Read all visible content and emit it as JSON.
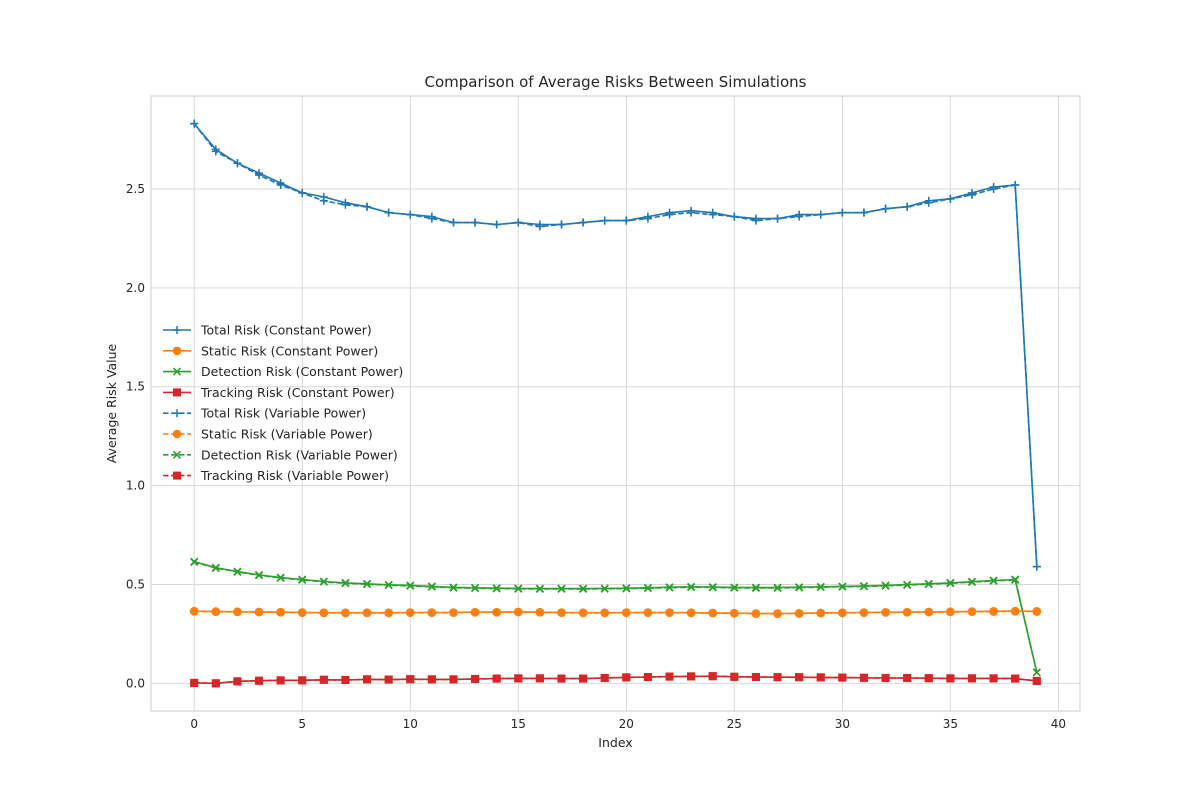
{
  "chart_data": {
    "type": "line",
    "title": "Comparison of Average Risks Between Simulations",
    "xlabel": "Index",
    "ylabel": "Average Risk Value",
    "xlim": [
      -2,
      41
    ],
    "ylim": [
      -0.14,
      2.97
    ],
    "xticks": [
      0,
      5,
      10,
      15,
      20,
      25,
      30,
      35,
      40
    ],
    "yticks": [
      0.0,
      0.5,
      1.0,
      1.5,
      2.0,
      2.5
    ],
    "xtick_labels": [
      "0",
      "5",
      "10",
      "15",
      "20",
      "25",
      "30",
      "35",
      "40"
    ],
    "ytick_labels": [
      "0.0",
      "0.5",
      "1.0",
      "1.5",
      "2.0",
      "2.5"
    ],
    "grid": true,
    "legend_position": "center-left",
    "x": [
      0,
      1,
      2,
      3,
      4,
      5,
      6,
      7,
      8,
      9,
      10,
      11,
      12,
      13,
      14,
      15,
      16,
      17,
      18,
      19,
      20,
      21,
      22,
      23,
      24,
      25,
      26,
      27,
      28,
      29,
      30,
      31,
      32,
      33,
      34,
      35,
      36,
      37,
      38,
      39
    ],
    "series": [
      {
        "name": "Total Risk (Constant Power)",
        "color": "#1f77b4",
        "linestyle": "solid",
        "marker": "plus",
        "values": [
          2.83,
          2.7,
          2.63,
          2.58,
          2.53,
          2.48,
          2.46,
          2.43,
          2.41,
          2.38,
          2.37,
          2.36,
          2.33,
          2.33,
          2.32,
          2.33,
          2.32,
          2.32,
          2.33,
          2.34,
          2.34,
          2.36,
          2.38,
          2.39,
          2.38,
          2.36,
          2.35,
          2.35,
          2.37,
          2.37,
          2.38,
          2.38,
          2.4,
          2.41,
          2.44,
          2.45,
          2.48,
          2.51,
          2.52,
          0.59
        ]
      },
      {
        "name": "Static Risk (Constant Power)",
        "color": "#ff7f0e",
        "linestyle": "solid",
        "marker": "circle",
        "values": [
          0.365,
          0.363,
          0.362,
          0.361,
          0.36,
          0.358,
          0.357,
          0.357,
          0.357,
          0.357,
          0.358,
          0.358,
          0.358,
          0.36,
          0.36,
          0.361,
          0.36,
          0.358,
          0.357,
          0.357,
          0.358,
          0.358,
          0.358,
          0.357,
          0.356,
          0.355,
          0.353,
          0.353,
          0.354,
          0.356,
          0.357,
          0.358,
          0.359,
          0.36,
          0.361,
          0.362,
          0.363,
          0.364,
          0.365,
          0.364
        ]
      },
      {
        "name": "Detection Risk (Constant Power)",
        "color": "#2ca02c",
        "linestyle": "solid",
        "marker": "x",
        "values": [
          0.615,
          0.585,
          0.565,
          0.548,
          0.535,
          0.525,
          0.515,
          0.508,
          0.503,
          0.498,
          0.495,
          0.49,
          0.485,
          0.483,
          0.481,
          0.48,
          0.479,
          0.479,
          0.479,
          0.48,
          0.481,
          0.483,
          0.486,
          0.488,
          0.487,
          0.485,
          0.484,
          0.484,
          0.486,
          0.488,
          0.49,
          0.492,
          0.495,
          0.499,
          0.503,
          0.508,
          0.514,
          0.52,
          0.525,
          0.055
        ]
      },
      {
        "name": "Tracking Risk (Constant Power)",
        "color": "#d62728",
        "linestyle": "solid",
        "marker": "square",
        "values": [
          0.002,
          0.0,
          0.01,
          0.013,
          0.015,
          0.015,
          0.018,
          0.017,
          0.02,
          0.019,
          0.021,
          0.02,
          0.02,
          0.022,
          0.024,
          0.025,
          0.025,
          0.024,
          0.024,
          0.027,
          0.03,
          0.032,
          0.034,
          0.035,
          0.036,
          0.033,
          0.032,
          0.031,
          0.031,
          0.03,
          0.029,
          0.028,
          0.027,
          0.027,
          0.026,
          0.025,
          0.025,
          0.025,
          0.024,
          0.012
        ]
      },
      {
        "name": "Total Risk (Variable Power)",
        "color": "#1f77b4",
        "linestyle": "dashed",
        "marker": "plus",
        "values": [
          2.83,
          2.69,
          2.63,
          2.57,
          2.52,
          2.48,
          2.44,
          2.42,
          2.41,
          2.38,
          2.37,
          2.35,
          2.33,
          2.33,
          2.32,
          2.33,
          2.31,
          2.32,
          2.33,
          2.34,
          2.34,
          2.35,
          2.37,
          2.38,
          2.37,
          2.36,
          2.34,
          2.35,
          2.36,
          2.37,
          2.38,
          2.38,
          2.4,
          2.41,
          2.43,
          2.45,
          2.47,
          2.5,
          2.52,
          0.59
        ]
      },
      {
        "name": "Static Risk (Variable Power)",
        "color": "#ff7f0e",
        "linestyle": "dashed",
        "marker": "circle",
        "values": [
          0.364,
          0.362,
          0.361,
          0.36,
          0.359,
          0.357,
          0.356,
          0.356,
          0.356,
          0.356,
          0.357,
          0.357,
          0.357,
          0.359,
          0.359,
          0.36,
          0.359,
          0.357,
          0.356,
          0.356,
          0.357,
          0.357,
          0.357,
          0.356,
          0.355,
          0.354,
          0.352,
          0.352,
          0.353,
          0.355,
          0.356,
          0.357,
          0.358,
          0.359,
          0.36,
          0.361,
          0.362,
          0.363,
          0.364,
          0.363
        ]
      },
      {
        "name": "Detection Risk (Variable Power)",
        "color": "#2ca02c",
        "linestyle": "dashed",
        "marker": "x",
        "values": [
          0.613,
          0.583,
          0.563,
          0.546,
          0.533,
          0.523,
          0.513,
          0.506,
          0.501,
          0.496,
          0.493,
          0.488,
          0.483,
          0.481,
          0.479,
          0.478,
          0.477,
          0.477,
          0.477,
          0.478,
          0.479,
          0.481,
          0.484,
          0.486,
          0.485,
          0.483,
          0.482,
          0.482,
          0.484,
          0.486,
          0.488,
          0.49,
          0.493,
          0.497,
          0.501,
          0.506,
          0.512,
          0.518,
          0.523,
          0.055
        ]
      },
      {
        "name": "Tracking Risk (Variable Power)",
        "color": "#d62728",
        "linestyle": "dashed",
        "marker": "square",
        "values": [
          0.002,
          0.0,
          0.01,
          0.013,
          0.015,
          0.015,
          0.018,
          0.017,
          0.02,
          0.019,
          0.021,
          0.02,
          0.02,
          0.022,
          0.024,
          0.025,
          0.025,
          0.024,
          0.024,
          0.027,
          0.03,
          0.032,
          0.034,
          0.035,
          0.036,
          0.033,
          0.032,
          0.031,
          0.031,
          0.03,
          0.029,
          0.028,
          0.027,
          0.027,
          0.026,
          0.025,
          0.025,
          0.025,
          0.024,
          0.012
        ]
      }
    ]
  }
}
